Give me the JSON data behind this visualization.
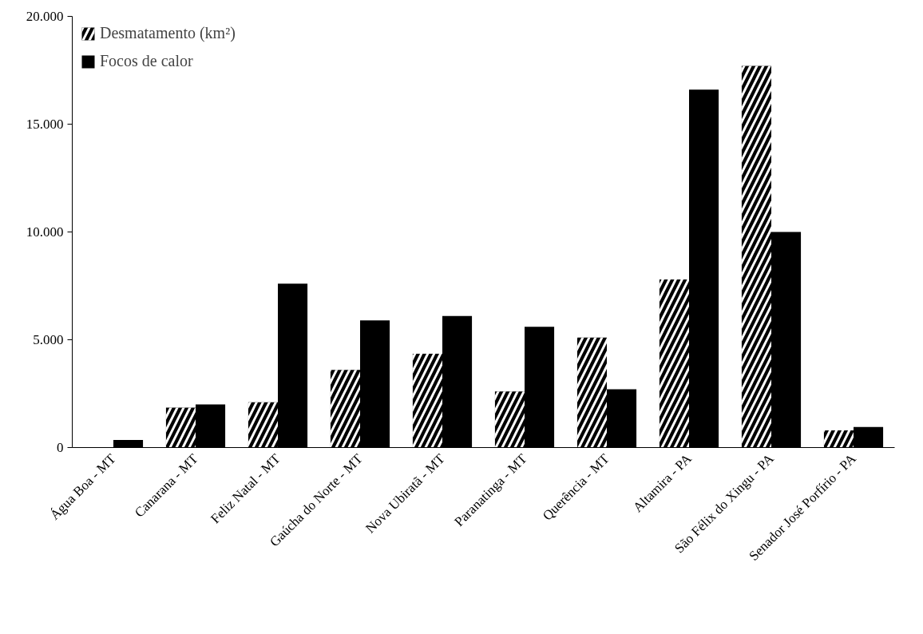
{
  "chart_data": {
    "type": "bar",
    "categories": [
      "Água Boa - MT",
      "Canarana - MT",
      "Feliz Natal - MT",
      "Gaúcha do Norte - MT",
      "Nova Ubiratã - MT",
      "Paranatinga - MT",
      "Querência - MT",
      "Altamira - PA",
      "São Félix do Xingu - PA",
      "Senador José Porfírio - PA"
    ],
    "series": [
      {
        "name": "Desmatamento (km²)",
        "color": "#000000",
        "values": [
          null,
          1850,
          2100,
          3600,
          4350,
          2600,
          5100,
          7800,
          17700,
          800
        ]
      },
      {
        "name": "Focos de calor",
        "color": "#000000",
        "values": [
          350,
          2000,
          7600,
          5900,
          6100,
          5600,
          2700,
          16600,
          10000,
          950
        ]
      }
    ],
    "ylim": [
      0,
      20000
    ],
    "yticks": [
      {
        "value": 0,
        "label": "0"
      },
      {
        "value": 5000,
        "label": "5.000"
      },
      {
        "value": 10000,
        "label": "10.000"
      },
      {
        "value": 15000,
        "label": "15.000"
      },
      {
        "value": 20000,
        "label": "20.000"
      }
    ],
    "grid": false,
    "legend": "top left"
  }
}
